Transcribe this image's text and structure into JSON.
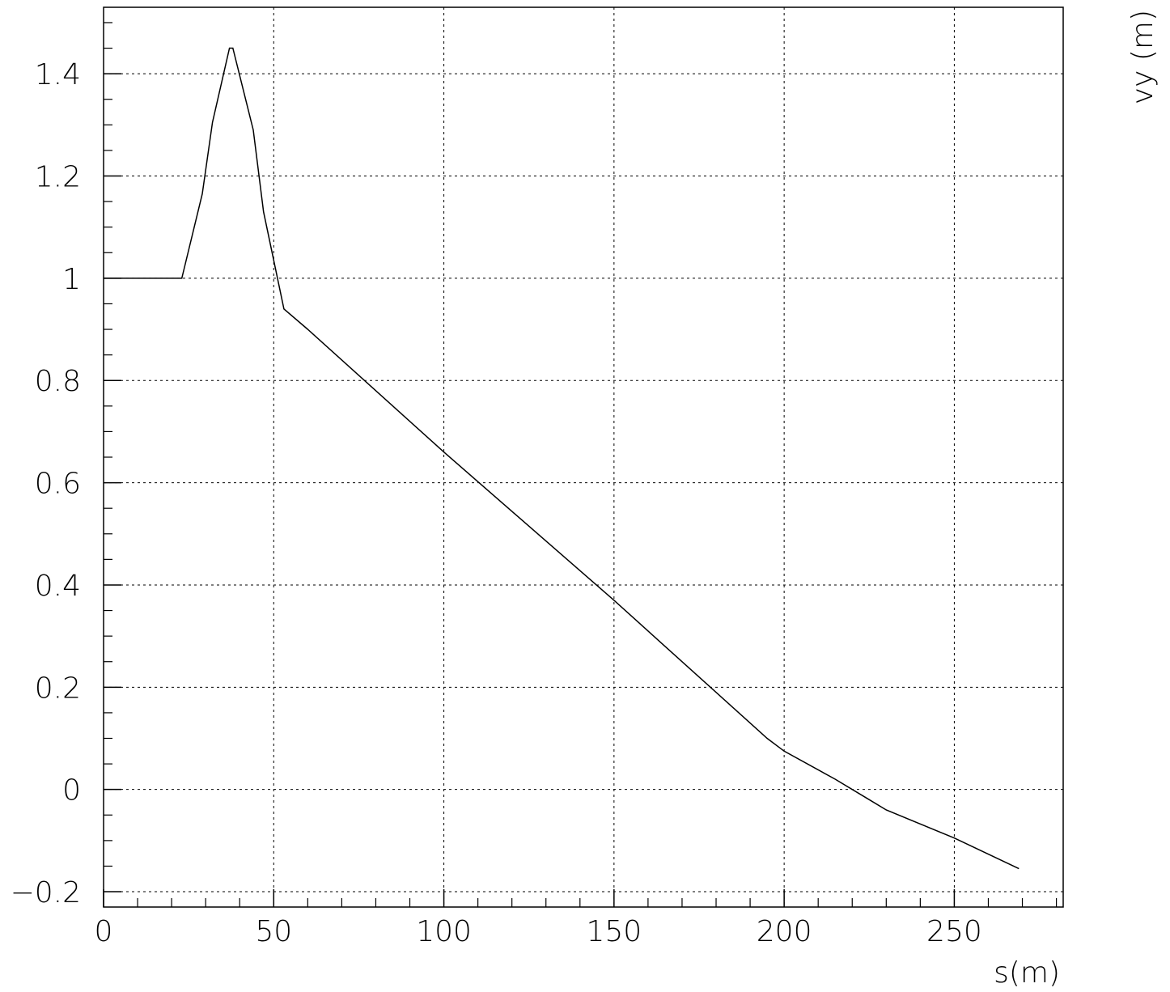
{
  "chart_data": {
    "type": "line",
    "xlabel": "s(m)",
    "ylabel": "vy (m)",
    "xlim": [
      0,
      282
    ],
    "ylim": [
      -0.23,
      1.53
    ],
    "x_ticks": [
      0,
      50,
      100,
      150,
      200,
      250
    ],
    "x_tick_labels": [
      "0",
      "50",
      "100",
      "150",
      "200",
      "250"
    ],
    "y_ticks": [
      -0.2,
      0,
      0.2,
      0.4,
      0.6,
      0.8,
      1,
      1.2,
      1.4
    ],
    "y_tick_labels": [
      "−0.2",
      "0",
      "0.2",
      "0.4",
      "0.6",
      "0.8",
      "1",
      "1.2",
      "1.4"
    ],
    "grid": true,
    "series": [
      {
        "x": [
          0,
          23,
          29,
          32,
          37,
          38,
          44,
          47,
          53,
          60,
          100,
          150,
          165,
          195,
          200,
          215,
          225,
          230,
          250,
          269
        ],
        "y": [
          1.0,
          1.0,
          1.165,
          1.305,
          1.45,
          1.45,
          1.29,
          1.13,
          0.94,
          0.9,
          0.66,
          0.37,
          0.28,
          0.1,
          0.075,
          0.02,
          -0.02,
          -0.04,
          -0.095,
          -0.155
        ]
      }
    ]
  }
}
